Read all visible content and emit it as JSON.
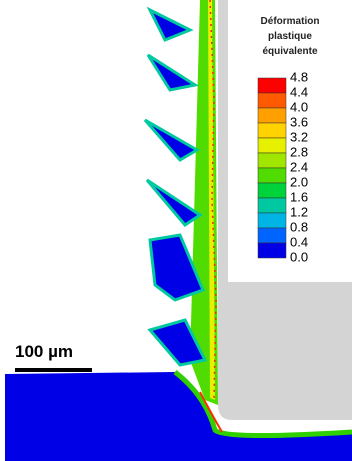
{
  "legend": {
    "title": [
      "Déformation",
      "plastique",
      "équivalente"
    ],
    "labels": [
      "4.8",
      "4.4",
      "4.0",
      "3.6",
      "3.2",
      "2.8",
      "2.4",
      "2.0",
      "1.6",
      "1.2",
      "0.8",
      "0.4",
      "0.0"
    ],
    "colors": [
      "#ff0000",
      "#ff5a00",
      "#ffa000",
      "#ffd200",
      "#e6f000",
      "#a0e600",
      "#50dc00",
      "#00d23c",
      "#00c8a0",
      "#00b4e6",
      "#0064ff",
      "#0000e6"
    ]
  },
  "scale_bar": {
    "label": "100 µm"
  }
}
